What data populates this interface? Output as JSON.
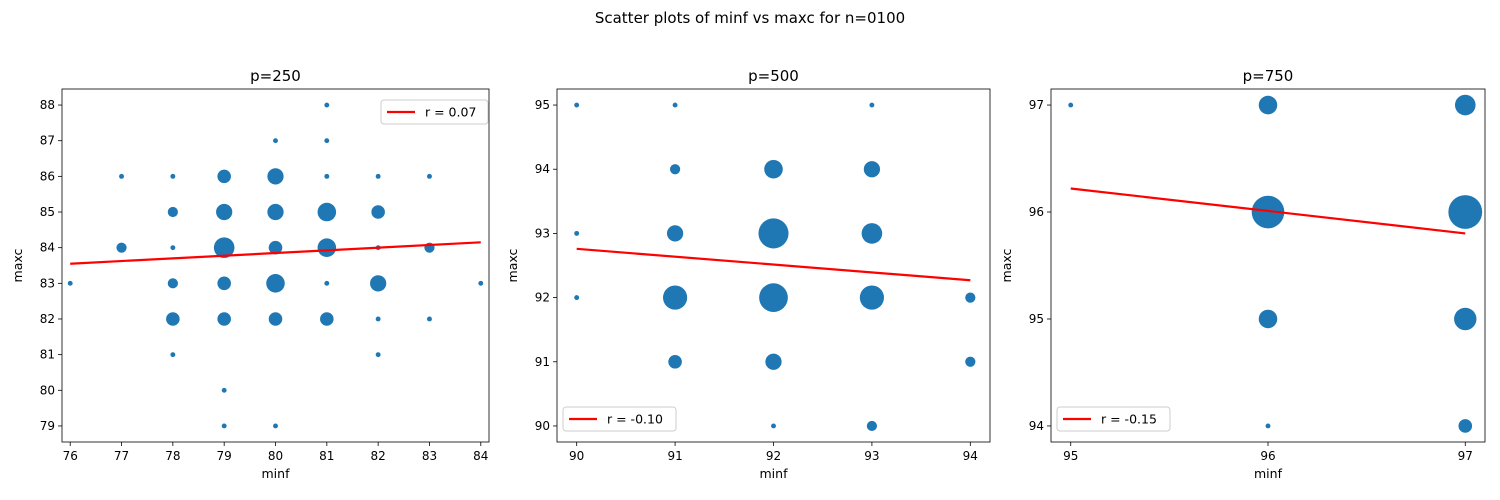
{
  "figure": {
    "suptitle": "Scatter plots of minf vs maxc for n=0100"
  },
  "chart_data": [
    {
      "type": "scatter",
      "title": "p=250",
      "xlabel": "minf",
      "ylabel": "maxc",
      "xlim": [
        75.84,
        84.16
      ],
      "ylim": [
        78.55,
        88.45
      ],
      "xticks": [
        76,
        77,
        78,
        79,
        80,
        81,
        82,
        83,
        84
      ],
      "yticks": [
        79,
        80,
        81,
        82,
        83,
        84,
        85,
        86,
        87,
        88
      ],
      "grid": false,
      "legend": {
        "position": "upper-right",
        "label": "r = 0.07"
      },
      "marker_color": "#1f77b4",
      "line_color": "#ff0000",
      "trendline": {
        "x": [
          76,
          84
        ],
        "y": [
          83.55,
          84.15
        ]
      },
      "points": [
        {
          "x": 76,
          "y": 83,
          "count": 1
        },
        {
          "x": 77,
          "y": 86,
          "count": 1
        },
        {
          "x": 77,
          "y": 84,
          "count": 2
        },
        {
          "x": 78,
          "y": 86,
          "count": 1
        },
        {
          "x": 78,
          "y": 85,
          "count": 2
        },
        {
          "x": 78,
          "y": 84,
          "count": 1
        },
        {
          "x": 78,
          "y": 83,
          "count": 2
        },
        {
          "x": 78,
          "y": 82,
          "count": 3
        },
        {
          "x": 78,
          "y": 81,
          "count": 1
        },
        {
          "x": 79,
          "y": 86,
          "count": 3
        },
        {
          "x": 79,
          "y": 85,
          "count": 4
        },
        {
          "x": 79,
          "y": 84,
          "count": 6
        },
        {
          "x": 79,
          "y": 83,
          "count": 3
        },
        {
          "x": 79,
          "y": 82,
          "count": 3
        },
        {
          "x": 79,
          "y": 80,
          "count": 1
        },
        {
          "x": 79,
          "y": 79,
          "count": 1
        },
        {
          "x": 80,
          "y": 87,
          "count": 1
        },
        {
          "x": 80,
          "y": 86,
          "count": 4
        },
        {
          "x": 80,
          "y": 85,
          "count": 4
        },
        {
          "x": 80,
          "y": 84,
          "count": 3
        },
        {
          "x": 80,
          "y": 83,
          "count": 5
        },
        {
          "x": 80,
          "y": 82,
          "count": 3
        },
        {
          "x": 80,
          "y": 79,
          "count": 1
        },
        {
          "x": 81,
          "y": 88,
          "count": 1
        },
        {
          "x": 81,
          "y": 87,
          "count": 1
        },
        {
          "x": 81,
          "y": 86,
          "count": 1
        },
        {
          "x": 81,
          "y": 85,
          "count": 5
        },
        {
          "x": 81,
          "y": 84,
          "count": 5
        },
        {
          "x": 81,
          "y": 83,
          "count": 1
        },
        {
          "x": 81,
          "y": 82,
          "count": 3
        },
        {
          "x": 82,
          "y": 86,
          "count": 1
        },
        {
          "x": 82,
          "y": 85,
          "count": 3
        },
        {
          "x": 82,
          "y": 84,
          "count": 1
        },
        {
          "x": 82,
          "y": 83,
          "count": 4
        },
        {
          "x": 82,
          "y": 82,
          "count": 1
        },
        {
          "x": 82,
          "y": 81,
          "count": 1
        },
        {
          "x": 83,
          "y": 86,
          "count": 1
        },
        {
          "x": 83,
          "y": 84,
          "count": 2
        },
        {
          "x": 83,
          "y": 82,
          "count": 1
        },
        {
          "x": 84,
          "y": 83,
          "count": 1
        }
      ]
    },
    {
      "type": "scatter",
      "title": "p=500",
      "xlabel": "minf",
      "ylabel": "maxc",
      "xlim": [
        89.8,
        94.2
      ],
      "ylim": [
        89.75,
        95.25
      ],
      "xticks": [
        90,
        91,
        92,
        93,
        94
      ],
      "yticks": [
        90,
        91,
        92,
        93,
        94,
        95
      ],
      "grid": false,
      "legend": {
        "position": "lower-left",
        "label": "r = -0.10"
      },
      "marker_color": "#1f77b4",
      "line_color": "#ff0000",
      "trendline": {
        "x": [
          90,
          94
        ],
        "y": [
          92.76,
          92.27
        ]
      },
      "points": [
        {
          "x": 90,
          "y": 95,
          "count": 1
        },
        {
          "x": 90,
          "y": 93,
          "count": 1
        },
        {
          "x": 90,
          "y": 92,
          "count": 1
        },
        {
          "x": 91,
          "y": 95,
          "count": 1
        },
        {
          "x": 91,
          "y": 94,
          "count": 2
        },
        {
          "x": 91,
          "y": 93,
          "count": 4
        },
        {
          "x": 91,
          "y": 92,
          "count": 8
        },
        {
          "x": 91,
          "y": 91,
          "count": 3
        },
        {
          "x": 92,
          "y": 94,
          "count": 5
        },
        {
          "x": 92,
          "y": 93,
          "count": 12
        },
        {
          "x": 92,
          "y": 92,
          "count": 11
        },
        {
          "x": 92,
          "y": 91,
          "count": 4
        },
        {
          "x": 92,
          "y": 90,
          "count": 1
        },
        {
          "x": 93,
          "y": 95,
          "count": 1
        },
        {
          "x": 93,
          "y": 94,
          "count": 4
        },
        {
          "x": 93,
          "y": 93,
          "count": 6
        },
        {
          "x": 93,
          "y": 92,
          "count": 8
        },
        {
          "x": 93,
          "y": 90,
          "count": 2
        },
        {
          "x": 94,
          "y": 92,
          "count": 2
        },
        {
          "x": 94,
          "y": 91,
          "count": 2
        }
      ]
    },
    {
      "type": "scatter",
      "title": "p=750",
      "xlabel": "minf",
      "ylabel": "maxc",
      "xlim": [
        94.9,
        97.1
      ],
      "ylim": [
        93.85,
        97.15
      ],
      "xticks": [
        95,
        96,
        97
      ],
      "yticks": [
        94,
        95,
        96,
        97
      ],
      "grid": false,
      "legend": {
        "position": "lower-left",
        "label": "r = -0.15"
      },
      "marker_color": "#1f77b4",
      "line_color": "#ff0000",
      "trendline": {
        "x": [
          95,
          97
        ],
        "y": [
          96.22,
          95.8
        ]
      },
      "points": [
        {
          "x": 95,
          "y": 97,
          "count": 1
        },
        {
          "x": 96,
          "y": 97,
          "count": 5
        },
        {
          "x": 96,
          "y": 96,
          "count": 14
        },
        {
          "x": 96,
          "y": 95,
          "count": 5
        },
        {
          "x": 96,
          "y": 94,
          "count": 1
        },
        {
          "x": 97,
          "y": 97,
          "count": 6
        },
        {
          "x": 97,
          "y": 96,
          "count": 15
        },
        {
          "x": 97,
          "y": 95,
          "count": 7
        },
        {
          "x": 97,
          "y": 94,
          "count": 3
        }
      ]
    }
  ]
}
